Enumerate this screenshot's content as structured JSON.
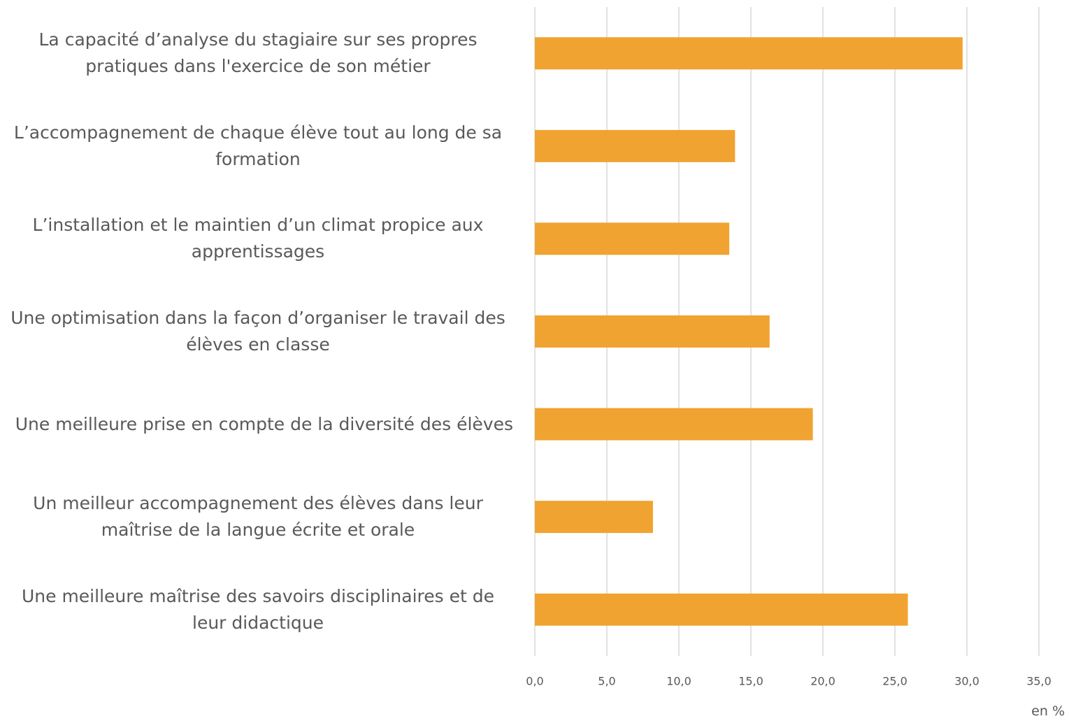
{
  "chart_data": {
    "type": "bar",
    "orientation": "horizontal",
    "categories": [
      "La capacité d’analyse du stagiaire sur ses propres pratiques dans l'exercice de son métier",
      "L’accompagnement de chaque élève tout au long de sa formation",
      "L’installation et le maintien d’un climat propice aux apprentissages",
      "Une optimisation dans la façon d’organiser le travail des élèves en classe",
      "Une meilleure prise en compte de la diversité des élèves",
      "Un meilleur accompagnement des élèves dans leur maîtrise de la langue écrite et orale",
      "Une meilleure maîtrise des savoirs disciplinaires et de leur didactique"
    ],
    "values": [
      29.7,
      13.9,
      13.5,
      16.3,
      19.3,
      8.2,
      25.9
    ],
    "color": "#f0a330",
    "xlim": [
      0,
      35
    ],
    "xticks": [
      {
        "value": 0,
        "label": "0,0"
      },
      {
        "value": 5,
        "label": "5,0"
      },
      {
        "value": 10,
        "label": "10,0"
      },
      {
        "value": 15,
        "label": "15,0"
      },
      {
        "value": 20,
        "label": "20,0"
      },
      {
        "value": 25,
        "label": "25,0"
      },
      {
        "value": 30,
        "label": "30,0"
      },
      {
        "value": 35,
        "label": "35,0"
      }
    ],
    "xlabel": "en %",
    "grid": true
  }
}
